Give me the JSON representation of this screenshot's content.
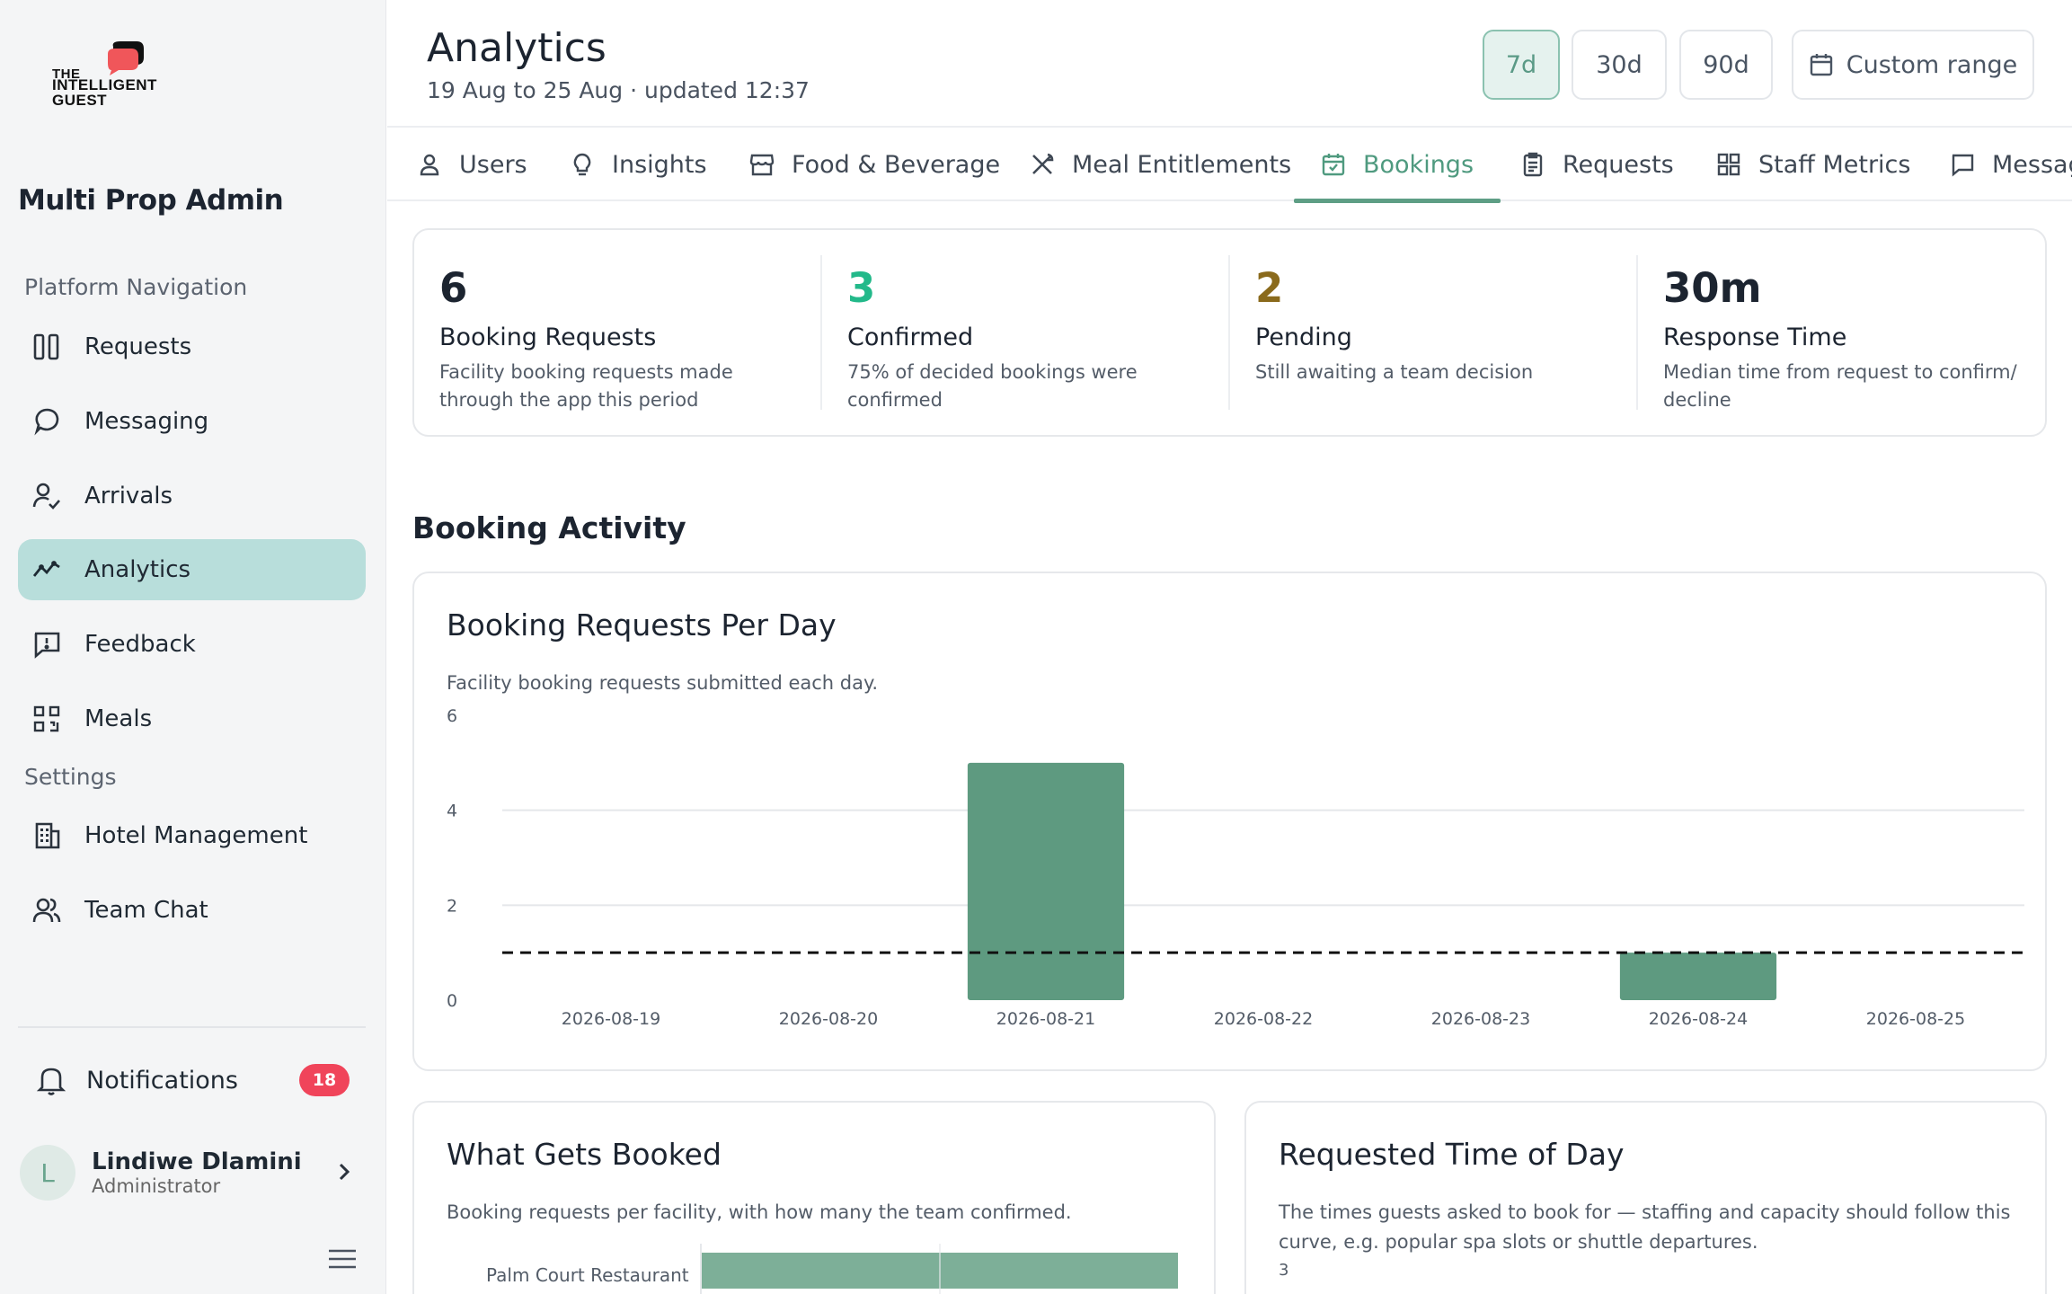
{
  "logo": {
    "line1": "THE",
    "line2": "INTELLIGENT",
    "line3": "GUEST"
  },
  "sidebar": {
    "brand": "Multi Prop Admin",
    "nav_section": "Platform Navigation",
    "settings_section": "Settings",
    "items": [
      {
        "label": "Requests",
        "icon": "columns-icon"
      },
      {
        "label": "Messaging",
        "icon": "chat-bubble-icon"
      },
      {
        "label": "Arrivals",
        "icon": "user-check-icon"
      },
      {
        "label": "Analytics",
        "icon": "trend-icon",
        "active": true
      },
      {
        "label": "Feedback",
        "icon": "feedback-icon"
      },
      {
        "label": "Meals",
        "icon": "qr-icon"
      }
    ],
    "settings_items": [
      {
        "label": "Hotel Management",
        "icon": "building-icon"
      },
      {
        "label": "Team Chat",
        "icon": "users-icon"
      }
    ],
    "notifications": {
      "label": "Notifications",
      "count": "18"
    },
    "user": {
      "initial": "L",
      "name": "Lindiwe Dlamini",
      "role": "Administrator"
    }
  },
  "header": {
    "title": "Analytics",
    "subtitle": "19 Aug to 25 Aug · updated 12:37",
    "ranges": [
      "7d",
      "30d",
      "90d"
    ],
    "active_range": "7d",
    "custom_range": "Custom range"
  },
  "tabs": [
    {
      "label": "Users",
      "icon": "user-icon"
    },
    {
      "label": "Insights",
      "icon": "lightbulb-icon"
    },
    {
      "label": "Food & Beverage",
      "icon": "store-icon"
    },
    {
      "label": "Meal Entitlements",
      "icon": "utensils-icon"
    },
    {
      "label": "Bookings",
      "icon": "calendar-check-icon",
      "active": true
    },
    {
      "label": "Requests",
      "icon": "clipboard-icon"
    },
    {
      "label": "Staff Metrics",
      "icon": "grid-icon"
    },
    {
      "label": "Messag",
      "icon": "message-icon"
    }
  ],
  "stats": [
    {
      "value": "6",
      "label": "Booking Requests",
      "desc": "Facility booking requests made through the app this period",
      "color": "#1c2430"
    },
    {
      "value": "3",
      "label": "Confirmed",
      "desc": "75% of decided bookings were confirmed",
      "color": "#23b98a"
    },
    {
      "value": "2",
      "label": "Pending",
      "desc": "Still awaiting a team decision",
      "color": "#8a6a1c"
    },
    {
      "value": "30m",
      "label": "Response Time",
      "desc": "Median time from request to confirm/ decline",
      "color": "#1c2430"
    }
  ],
  "section_title": "Booking Activity",
  "booking_chart": {
    "title": "Booking Requests Per Day",
    "desc": "Facility booking requests submitted each day."
  },
  "what_booked": {
    "title": "What Gets Booked",
    "desc": "Booking requests per facility, with how many the team confirmed.",
    "first_row_label": "Palm Court Restaurant"
  },
  "time_of_day": {
    "title": "Requested Time of Day",
    "desc": "The times guests asked to book for — staffing and capacity should follow this curve, e.g. popular spa slots or shuttle departures.",
    "first_tick": "3"
  },
  "chart_data": {
    "type": "bar",
    "categories": [
      "2026-08-19",
      "2026-08-20",
      "2026-08-21",
      "2026-08-22",
      "2026-08-23",
      "2026-08-24",
      "2026-08-25"
    ],
    "values": [
      0,
      0,
      5,
      0,
      0,
      1,
      0
    ],
    "average_line": 1,
    "ylim": [
      0,
      6
    ],
    "yticks": [
      0,
      2,
      4,
      6
    ],
    "bar_color": "#5e9a80",
    "grid": true
  }
}
